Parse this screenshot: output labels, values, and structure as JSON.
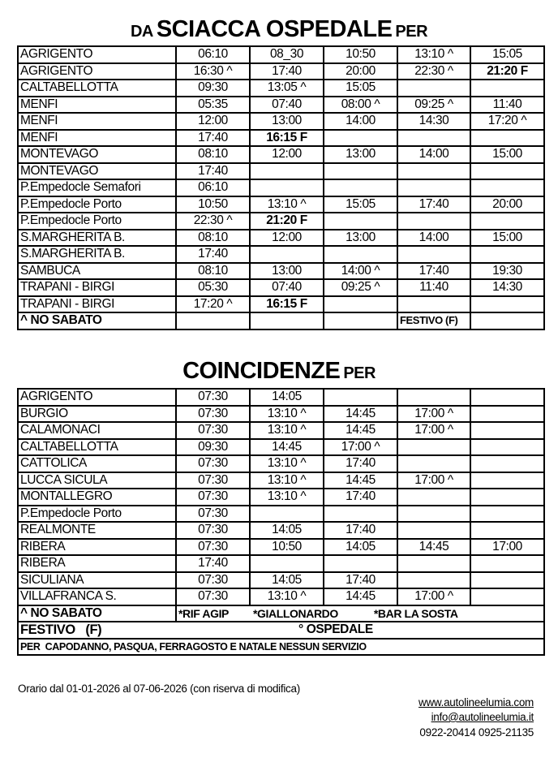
{
  "departures": {
    "title_prefix": "DA",
    "title_main": "SCIACCA OSPEDALE",
    "title_suffix": "PER",
    "rows": [
      {
        "dest": "AGRIGENTO",
        "times": [
          "06:10",
          "08_30",
          "10:50",
          "13:10 ^",
          "15:05"
        ]
      },
      {
        "dest": "AGRIGENTO",
        "times": [
          "16:30 ^",
          "17:40",
          "20:00",
          "22:30 ^",
          "21:20 F"
        ]
      },
      {
        "dest": "CALTABELLOTTA",
        "times": [
          "09:30",
          "13:05 ^",
          "15:05",
          "",
          ""
        ]
      },
      {
        "dest": "MENFI",
        "times": [
          "05:35",
          "07:40",
          "08:00 ^",
          "09:25 ^",
          "11:40"
        ]
      },
      {
        "dest": "MENFI",
        "times": [
          "12:00",
          "13:00",
          "14:00",
          "14:30",
          "17:20 ^"
        ]
      },
      {
        "dest": "MENFI",
        "times": [
          "17:40",
          "16:15 F",
          "",
          "",
          ""
        ]
      },
      {
        "dest": "MONTEVAGO",
        "times": [
          "08:10",
          "12:00",
          "13:00",
          "14:00",
          "15:00"
        ]
      },
      {
        "dest": "MONTEVAGO",
        "times": [
          "17:40",
          "",
          "",
          "",
          ""
        ]
      },
      {
        "dest": "P.Empedocle Semafori",
        "times": [
          "06:10",
          "",
          "",
          "",
          ""
        ]
      },
      {
        "dest": "P.Empedocle Porto",
        "times": [
          "10:50",
          "13:10 ^",
          "15:05",
          "17:40",
          "20:00"
        ]
      },
      {
        "dest": "P.Empedocle Porto",
        "times": [
          "22:30 ^",
          "21:20 F",
          "",
          "",
          ""
        ]
      },
      {
        "dest": "S.MARGHERITA B.",
        "times": [
          "08:10",
          "12:00",
          "13:00",
          "14:00",
          "15:00"
        ]
      },
      {
        "dest": "S.MARGHERITA B.",
        "times": [
          "17:40",
          "",
          "",
          "",
          ""
        ]
      },
      {
        "dest": "SAMBUCA",
        "times": [
          "08:10",
          "13:00",
          "14:00 ^",
          "17:40",
          "19:30"
        ]
      },
      {
        "dest": "TRAPANI - BIRGI",
        "times": [
          "05:30",
          "07:40",
          "09:25 ^",
          "11:40",
          "14:30"
        ]
      },
      {
        "dest": "TRAPANI - BIRGI",
        "times": [
          "17:20 ^",
          "16:15 F",
          "",
          "",
          ""
        ]
      }
    ],
    "legend_no_sabato": "^ NO SABATO",
    "legend_festivo": "FESTIVO (F)"
  },
  "connections": {
    "title_main": "COINCIDENZE",
    "title_suffix": "PER",
    "rows": [
      {
        "dest": "AGRIGENTO",
        "times": [
          "07:30",
          "14:05",
          "",
          "",
          ""
        ]
      },
      {
        "dest": "BURGIO",
        "times": [
          "07:30",
          "13:10 ^",
          "14:45",
          "17:00 ^",
          ""
        ]
      },
      {
        "dest": "CALAMONACI",
        "times": [
          "07:30",
          "13:10 ^",
          "14:45",
          "17:00 ^",
          ""
        ]
      },
      {
        "dest": "CALTABELLOTTA",
        "times": [
          "09:30",
          "14:45",
          "17:00 ^",
          "",
          ""
        ]
      },
      {
        "dest": "CATTOLICA",
        "times": [
          "07:30",
          "13:10 ^",
          "17:40",
          "",
          ""
        ]
      },
      {
        "dest": "LUCCA SICULA",
        "times": [
          "07:30",
          "13:10 ^",
          "14:45",
          "17:00 ^",
          ""
        ]
      },
      {
        "dest": "MONTALLEGRO",
        "times": [
          "07:30",
          "13:10 ^",
          "17:40",
          "",
          ""
        ]
      },
      {
        "dest": "P.Empedocle Porto",
        "times": [
          "07:30",
          "",
          "",
          "",
          ""
        ]
      },
      {
        "dest": "REALMONTE",
        "times": [
          "07:30",
          "14:05",
          "17:40",
          "",
          ""
        ]
      },
      {
        "dest": "RIBERA",
        "times": [
          "07:30",
          "10:50",
          "14:05",
          "14:45",
          "17:00"
        ]
      },
      {
        "dest": "RIBERA",
        "times": [
          "17:40",
          "",
          "",
          "",
          ""
        ]
      },
      {
        "dest": "SICULIANA",
        "times": [
          "07:30",
          "14:05",
          "17:40",
          "",
          ""
        ]
      },
      {
        "dest": "VILLAFRANCA S.",
        "times": [
          "07:30",
          "13:10 ^",
          "14:45",
          "17:00 ^",
          ""
        ]
      }
    ],
    "legend_no_sabato": "^ NO SABATO",
    "stop_rif_agip": "*RIF AGIP",
    "stop_giallonardo": "*GIALLONARDO",
    "stop_bar_la_sosta": "*BAR LA SOSTA",
    "legend_festivo": "FESTIVO   (F)",
    "legend_ospedale": "° OSPEDALE",
    "holiday_notice": "PER  CAPODANNO, PASQUA, FERRAGOSTO E NATALE NESSUN SERVIZIO"
  },
  "footer": {
    "validity": "Orario dal 01-01-2026 al 07-06-2026 (con riserva di modifica)",
    "website": "www.autolineelumia.com",
    "email": "info@autolineelumia.it",
    "phones": "0922-20414   0925-21135"
  }
}
